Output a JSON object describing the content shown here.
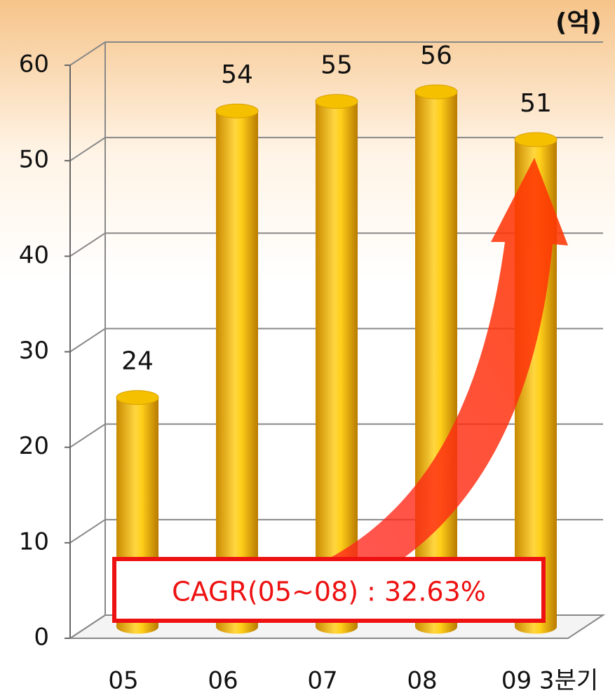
{
  "chart_data": {
    "type": "bar",
    "ylabel": "(억)",
    "categories": [
      "05",
      "06",
      "07",
      "08",
      "09 3분기"
    ],
    "values": [
      24,
      54,
      55,
      56,
      51
    ],
    "color": "#f5c000",
    "ylim": [
      0,
      60
    ],
    "yticks": [
      0,
      10,
      20,
      30,
      40,
      50,
      60
    ],
    "grid": true,
    "annotation": "CAGR(05~08) : 32.63%"
  }
}
